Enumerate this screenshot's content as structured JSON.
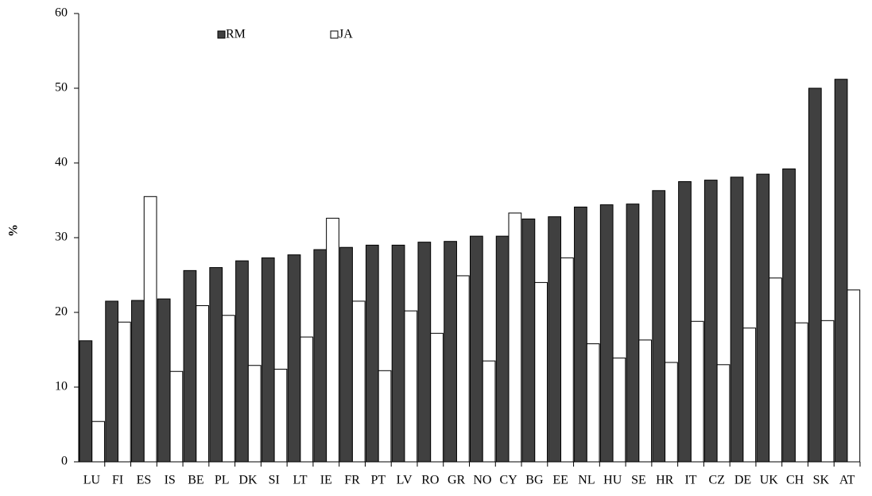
{
  "chart_data": {
    "type": "bar",
    "ylabel": "%",
    "categories": [
      "LU",
      "FI",
      "ES",
      "IS",
      "BE",
      "PL",
      "DK",
      "SI",
      "LT",
      "IE",
      "FR",
      "PT",
      "LV",
      "RO",
      "GR",
      "NO",
      "CY",
      "BG",
      "EE",
      "NL",
      "HU",
      "SE",
      "HR",
      "IT",
      "CZ",
      "DE",
      "UK",
      "CH",
      "SK",
      "AT"
    ],
    "series": [
      {
        "name": "RM",
        "color": "#404040",
        "values": [
          16.2,
          21.5,
          21.6,
          21.8,
          25.6,
          26.0,
          26.9,
          27.3,
          27.7,
          28.4,
          28.7,
          29.0,
          29.0,
          29.4,
          29.5,
          30.2,
          30.2,
          32.5,
          32.8,
          34.1,
          34.4,
          34.5,
          36.3,
          37.5,
          37.7,
          38.1,
          38.5,
          39.2,
          50.0,
          51.2
        ]
      },
      {
        "name": "JA",
        "color": "#ffffff",
        "values": [
          5.4,
          18.7,
          35.5,
          12.1,
          20.9,
          19.6,
          12.9,
          12.4,
          16.7,
          32.6,
          21.5,
          12.2,
          20.2,
          17.2,
          24.9,
          13.5,
          33.3,
          24.0,
          27.3,
          15.8,
          13.9,
          16.3,
          13.3,
          18.8,
          13.0,
          17.9,
          24.6,
          18.6,
          18.9,
          23.0
        ]
      }
    ],
    "ylim": [
      0,
      60
    ],
    "yticks": [
      0,
      10,
      20,
      30,
      40,
      50,
      60
    ]
  }
}
